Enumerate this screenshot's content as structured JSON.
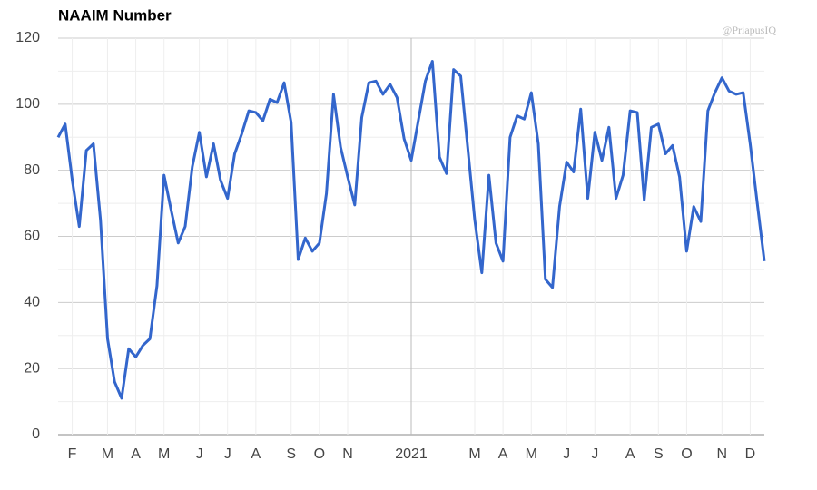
{
  "chart_data": {
    "type": "line",
    "title": "NAAIM Number",
    "watermark": "@PriapusIQ",
    "categories": [
      null,
      null,
      "F",
      null,
      null,
      null,
      null,
      "M",
      null,
      null,
      null,
      "A",
      null,
      null,
      null,
      "M",
      null,
      null,
      null,
      null,
      "J",
      null,
      null,
      null,
      "J",
      null,
      null,
      null,
      "A",
      null,
      null,
      null,
      null,
      "S",
      null,
      null,
      null,
      "O",
      null,
      null,
      null,
      "N",
      null,
      null,
      null,
      null,
      null,
      null,
      null,
      null,
      "2021",
      null,
      null,
      null,
      null,
      null,
      null,
      null,
      null,
      "M",
      null,
      null,
      null,
      "A",
      null,
      null,
      null,
      "M",
      null,
      null,
      null,
      null,
      "J",
      null,
      null,
      null,
      "J",
      null,
      null,
      null,
      null,
      "A",
      null,
      null,
      null,
      "S",
      null,
      null,
      null,
      "O",
      null,
      null,
      null,
      null,
      "N",
      null,
      null,
      null,
      "D",
      null,
      null
    ],
    "series": [
      {
        "name": "NAAIM Number",
        "color": "#3366cc",
        "values": [
          90,
          94,
          77,
          63,
          86,
          88,
          65,
          29,
          16,
          11,
          26,
          23.5,
          27,
          29,
          45,
          78.5,
          68,
          58,
          63,
          81,
          91.5,
          78,
          88,
          77,
          71.5,
          85,
          91,
          98,
          97.5,
          95,
          101.5,
          100.5,
          106.5,
          94.5,
          53,
          59.5,
          55.5,
          58,
          73,
          103,
          87,
          78,
          69.5,
          96,
          106.5,
          107,
          103,
          106,
          102,
          89.5,
          83,
          95,
          107,
          113,
          84,
          79,
          110.5,
          108.5,
          87,
          65,
          49,
          78.5,
          58,
          52.5,
          90,
          96.5,
          95.5,
          103.5,
          88,
          47,
          44.5,
          69,
          82.5,
          79.5,
          98.5,
          71.5,
          91.5,
          83,
          93,
          71.5,
          78.5,
          98,
          97.5,
          71,
          93,
          94,
          85,
          87.5,
          78,
          55.5,
          69,
          64.5,
          98,
          103.5,
          108,
          104,
          103,
          103.5,
          88,
          70,
          52.5
        ]
      }
    ],
    "ylim": [
      0,
      120
    ],
    "yticks": [
      0,
      20,
      40,
      60,
      80,
      100,
      120
    ],
    "grid": true
  }
}
